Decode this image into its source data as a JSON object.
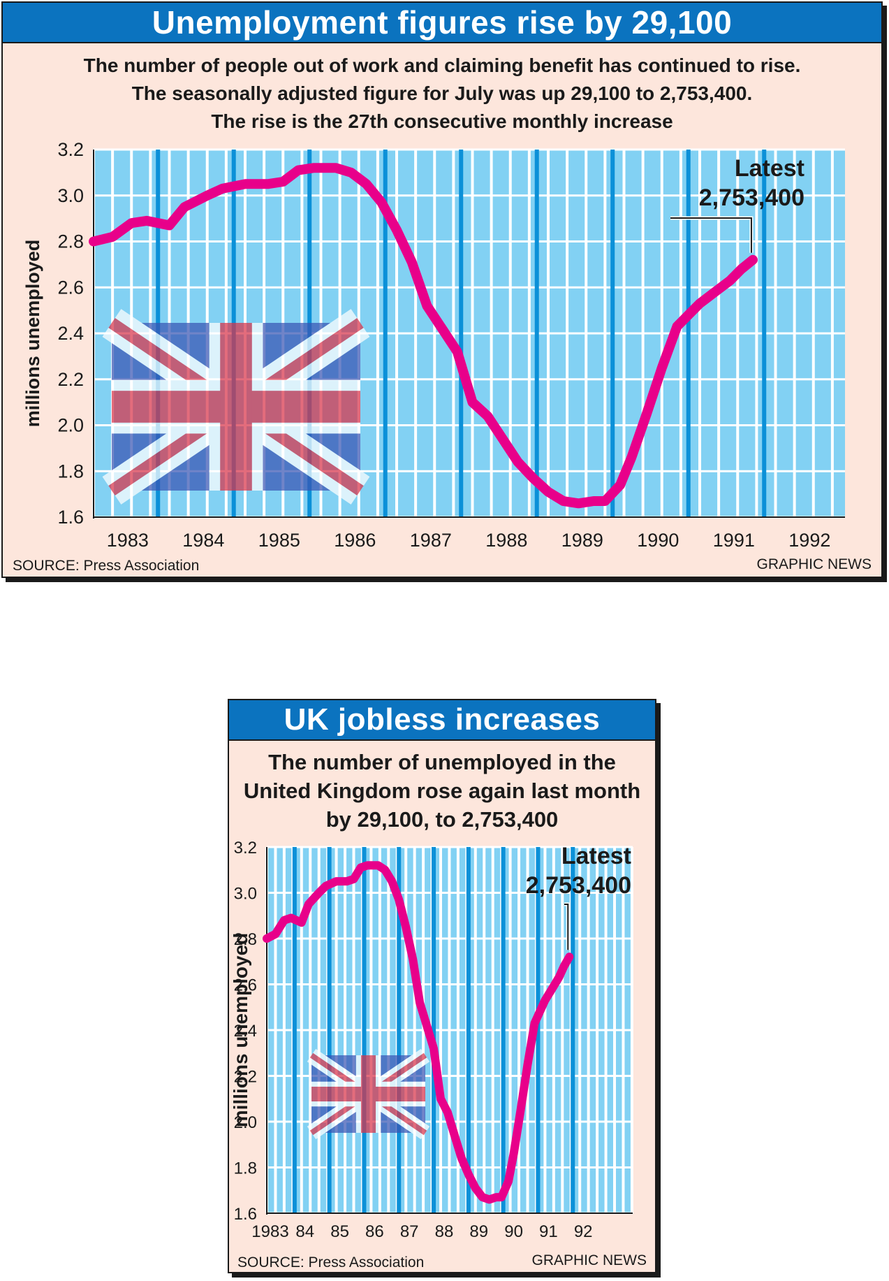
{
  "panels": [
    {
      "title": "Unemployment figures rise by 29,100",
      "subtitle_lines": [
        "The number of people out of work and claiming benefit has continued to rise.",
        "The seasonally adjusted figure for July was up 29,100 to 2,753,400.",
        "The rise is the 27th consecutive monthly increase"
      ],
      "source": "SOURCE: Press Association",
      "credit": "GRAPHIC NEWS"
    },
    {
      "title": "UK jobless increases",
      "subtitle_lines": [
        "The number of unemployed in the",
        "United Kingdom rose again last month",
        "by 29,100, to 2,753,400"
      ],
      "source": "SOURCE: Press Association",
      "credit": "GRAPHIC NEWS"
    }
  ],
  "colors": {
    "title_bar": "#0b73bf",
    "panel_bg": "#fde6dc",
    "plot_bg": "#82d1f3",
    "grid": "#ffffff",
    "year_stripe": "#0b90d8",
    "line": "#e8008a"
  },
  "icons": [
    "union-jack-flag"
  ],
  "chart_data": [
    {
      "type": "line",
      "title": "",
      "xlabel": "",
      "ylabel": "millions unemployed",
      "ylim": [
        1.6,
        3.2
      ],
      "yticks": [
        "3.2",
        "3.0",
        "2.8",
        "2.6",
        "2.4",
        "2.2",
        "2.0",
        "1.8",
        "1.6"
      ],
      "xticks": [
        "1983",
        "1984",
        "1985",
        "1986",
        "1987",
        "1988",
        "1989",
        "1990",
        "1991",
        "1992"
      ],
      "grid": true,
      "annotation": {
        "label_line1": "Latest",
        "label_line2": "2,753,400",
        "value": 2.7534
      },
      "series": [
        {
          "x": [
            1983.0,
            1983.25,
            1983.5,
            1983.7,
            1984.0,
            1984.2,
            1984.5,
            1984.7,
            1985.0,
            1985.15,
            1985.3,
            1985.5,
            1985.7,
            1985.9,
            1986.0,
            1986.2,
            1986.4,
            1986.6,
            1986.8,
            1987.0,
            1987.2,
            1987.4,
            1987.6,
            1987.8,
            1988.0,
            1988.2,
            1988.4,
            1988.6,
            1988.8,
            1989.0,
            1989.2,
            1989.4,
            1989.6,
            1989.75,
            1989.95,
            1990.1,
            1990.3,
            1990.5,
            1990.7,
            1990.85,
            1991.0,
            1991.2,
            1991.4,
            1991.55,
            1991.7
          ],
          "values": [
            2.8,
            2.82,
            2.88,
            2.89,
            2.87,
            2.95,
            3.0,
            3.03,
            3.05,
            3.05,
            3.05,
            3.06,
            3.11,
            3.12,
            3.12,
            3.12,
            3.1,
            3.05,
            2.97,
            2.85,
            2.71,
            2.52,
            2.42,
            2.32,
            2.1,
            2.04,
            1.94,
            1.84,
            1.77,
            1.71,
            1.67,
            1.66,
            1.67,
            1.67,
            1.74,
            1.86,
            2.05,
            2.25,
            2.43,
            2.48,
            2.53,
            2.58,
            2.63,
            2.68,
            2.72
          ]
        }
      ]
    },
    {
      "type": "line",
      "title": "",
      "xlabel": "",
      "ylabel": "millions unemployed",
      "ylim": [
        1.6,
        3.2
      ],
      "yticks": [
        "3.2",
        "3.0",
        "2.8",
        "2.6",
        "2.4",
        "2.2",
        "2.0",
        "1.8",
        "1.6"
      ],
      "xticks": [
        "1983",
        "84",
        "85",
        "86",
        "87",
        "88",
        "89",
        "90",
        "91",
        "92"
      ],
      "grid": true,
      "annotation": {
        "label_line1": "Latest",
        "label_line2": "2,753,400",
        "value": 2.7534
      },
      "series": [
        {
          "x": [
            1983.0,
            1983.25,
            1983.5,
            1983.7,
            1984.0,
            1984.2,
            1984.5,
            1984.7,
            1985.0,
            1985.15,
            1985.3,
            1985.5,
            1985.7,
            1985.9,
            1986.0,
            1986.2,
            1986.4,
            1986.6,
            1986.8,
            1987.0,
            1987.2,
            1987.4,
            1987.6,
            1987.8,
            1988.0,
            1988.2,
            1988.4,
            1988.6,
            1988.8,
            1989.0,
            1989.2,
            1989.4,
            1989.6,
            1989.75,
            1989.95,
            1990.1,
            1990.3,
            1990.5,
            1990.7,
            1990.85,
            1991.0,
            1991.2,
            1991.4,
            1991.55,
            1991.7
          ],
          "values": [
            2.8,
            2.82,
            2.88,
            2.89,
            2.87,
            2.95,
            3.0,
            3.03,
            3.05,
            3.05,
            3.05,
            3.06,
            3.11,
            3.12,
            3.12,
            3.12,
            3.1,
            3.05,
            2.97,
            2.85,
            2.71,
            2.52,
            2.42,
            2.32,
            2.1,
            2.04,
            1.94,
            1.84,
            1.77,
            1.71,
            1.67,
            1.66,
            1.67,
            1.67,
            1.74,
            1.86,
            2.05,
            2.25,
            2.43,
            2.48,
            2.53,
            2.58,
            2.63,
            2.68,
            2.72
          ]
        }
      ]
    }
  ]
}
